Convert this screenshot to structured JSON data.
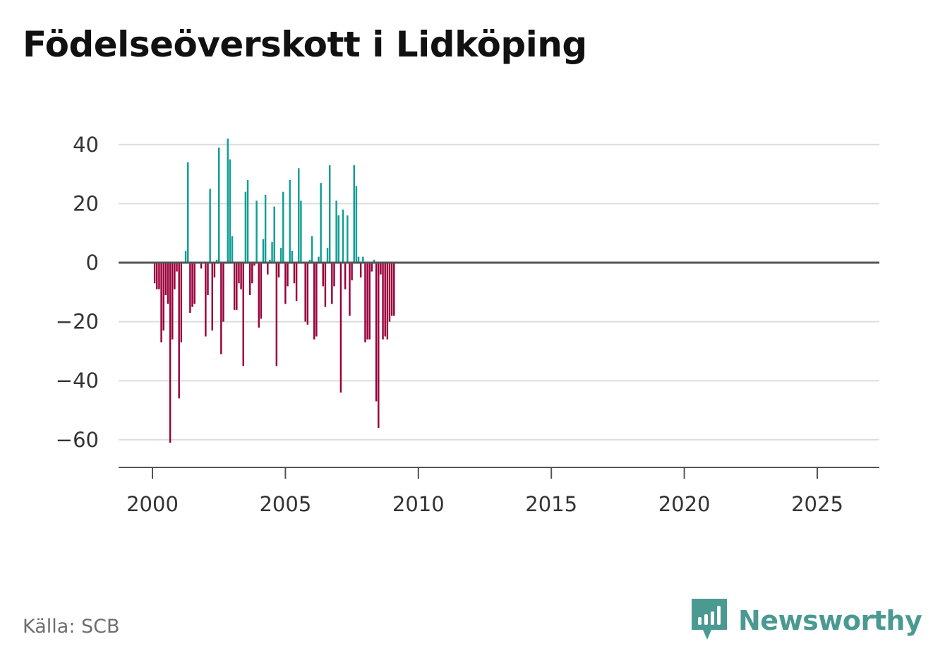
{
  "header": {
    "title": "Födelseöverskott i Lidköping"
  },
  "footer": {
    "source": "Källa: SCB",
    "brand": "Newsworthy"
  },
  "colors": {
    "positive": "#0f9e95",
    "negative": "#990039",
    "grid": "#dddddd",
    "zero_line": "#555555",
    "brand": "#4a9a92"
  },
  "chart_data": {
    "type": "bar",
    "title": "Födelseöverskott i Lidköping",
    "xlabel": "",
    "ylabel": "",
    "ylim": [
      -70,
      45
    ],
    "xlim": [
      1999.2,
      2027.3
    ],
    "yticks": [
      40,
      20,
      0,
      -20,
      -40,
      -60
    ],
    "ytick_labels": [
      "40",
      "20",
      "0",
      "−20",
      "−40",
      "−60"
    ],
    "xticks": [
      2000,
      2005,
      2010,
      2015,
      2020,
      2025
    ],
    "xtick_labels": [
      "2000",
      "2005",
      "2010",
      "2015",
      "2020",
      "2025"
    ],
    "start_year": 2000,
    "period": "month",
    "series": [
      {
        "name": "Födelseöverskott",
        "values": [
          0,
          -7,
          -9,
          -9,
          -27,
          -23,
          -11,
          -14,
          -61,
          -26,
          -9,
          -3,
          -46,
          -27,
          0,
          4,
          34,
          -17,
          -15,
          -14,
          0,
          0,
          -2,
          0,
          -25,
          -11,
          25,
          -23,
          -5,
          1,
          39,
          -31,
          -20,
          0,
          42,
          35,
          9,
          -16,
          -16,
          -7,
          -9,
          -35,
          24,
          28,
          -11,
          -7,
          -1,
          21,
          -22,
          -19,
          8,
          23,
          -4,
          1,
          7,
          19,
          -35,
          -5,
          5,
          24,
          -14,
          -8,
          28,
          4,
          -7,
          -13,
          32,
          21,
          0,
          -20,
          -21,
          1,
          9,
          -26,
          -25,
          2,
          27,
          -8,
          -15,
          5,
          33,
          -14,
          -8,
          21,
          16,
          -44,
          18,
          -9,
          16,
          -18,
          -6,
          33,
          26,
          2,
          -5,
          2,
          -27,
          -26,
          -26,
          -3,
          1,
          -47,
          -56,
          -4,
          -26,
          -25,
          -26,
          -20,
          -18,
          -18
        ]
      }
    ]
  }
}
